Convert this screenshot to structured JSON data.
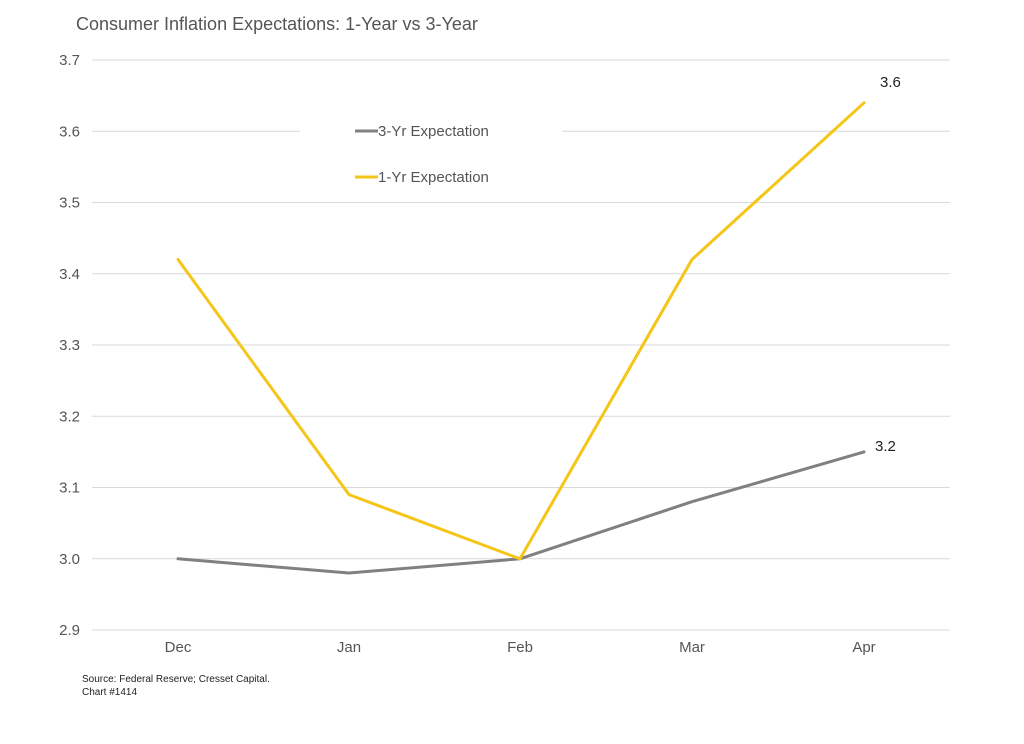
{
  "chart_data": {
    "type": "line",
    "title": "Consumer Inflation Expectations: 1-Year vs 3-Year",
    "categories": [
      "Dec",
      "Jan",
      "Feb",
      "Mar",
      "Apr"
    ],
    "ylim": [
      2.9,
      3.7
    ],
    "yticks": [
      "2.9",
      "3.0",
      "3.1",
      "3.2",
      "3.3",
      "3.4",
      "3.5",
      "3.6",
      "3.7"
    ],
    "grid": true,
    "legend_placement": "top-center",
    "series": [
      {
        "name": "3-Yr Expectation",
        "color": "#808080",
        "values": [
          3.0,
          2.98,
          3.0,
          3.08,
          3.15
        ],
        "end_label": "3.2"
      },
      {
        "name": "1-Yr Expectation",
        "color": "#F5C518",
        "values": [
          3.42,
          3.09,
          3.0,
          3.42,
          3.64
        ],
        "end_label": "3.6"
      }
    ]
  },
  "footer": {
    "source": "Source: Federal Reserve; Cresset Capital.",
    "chart_number": "Chart #1414"
  }
}
